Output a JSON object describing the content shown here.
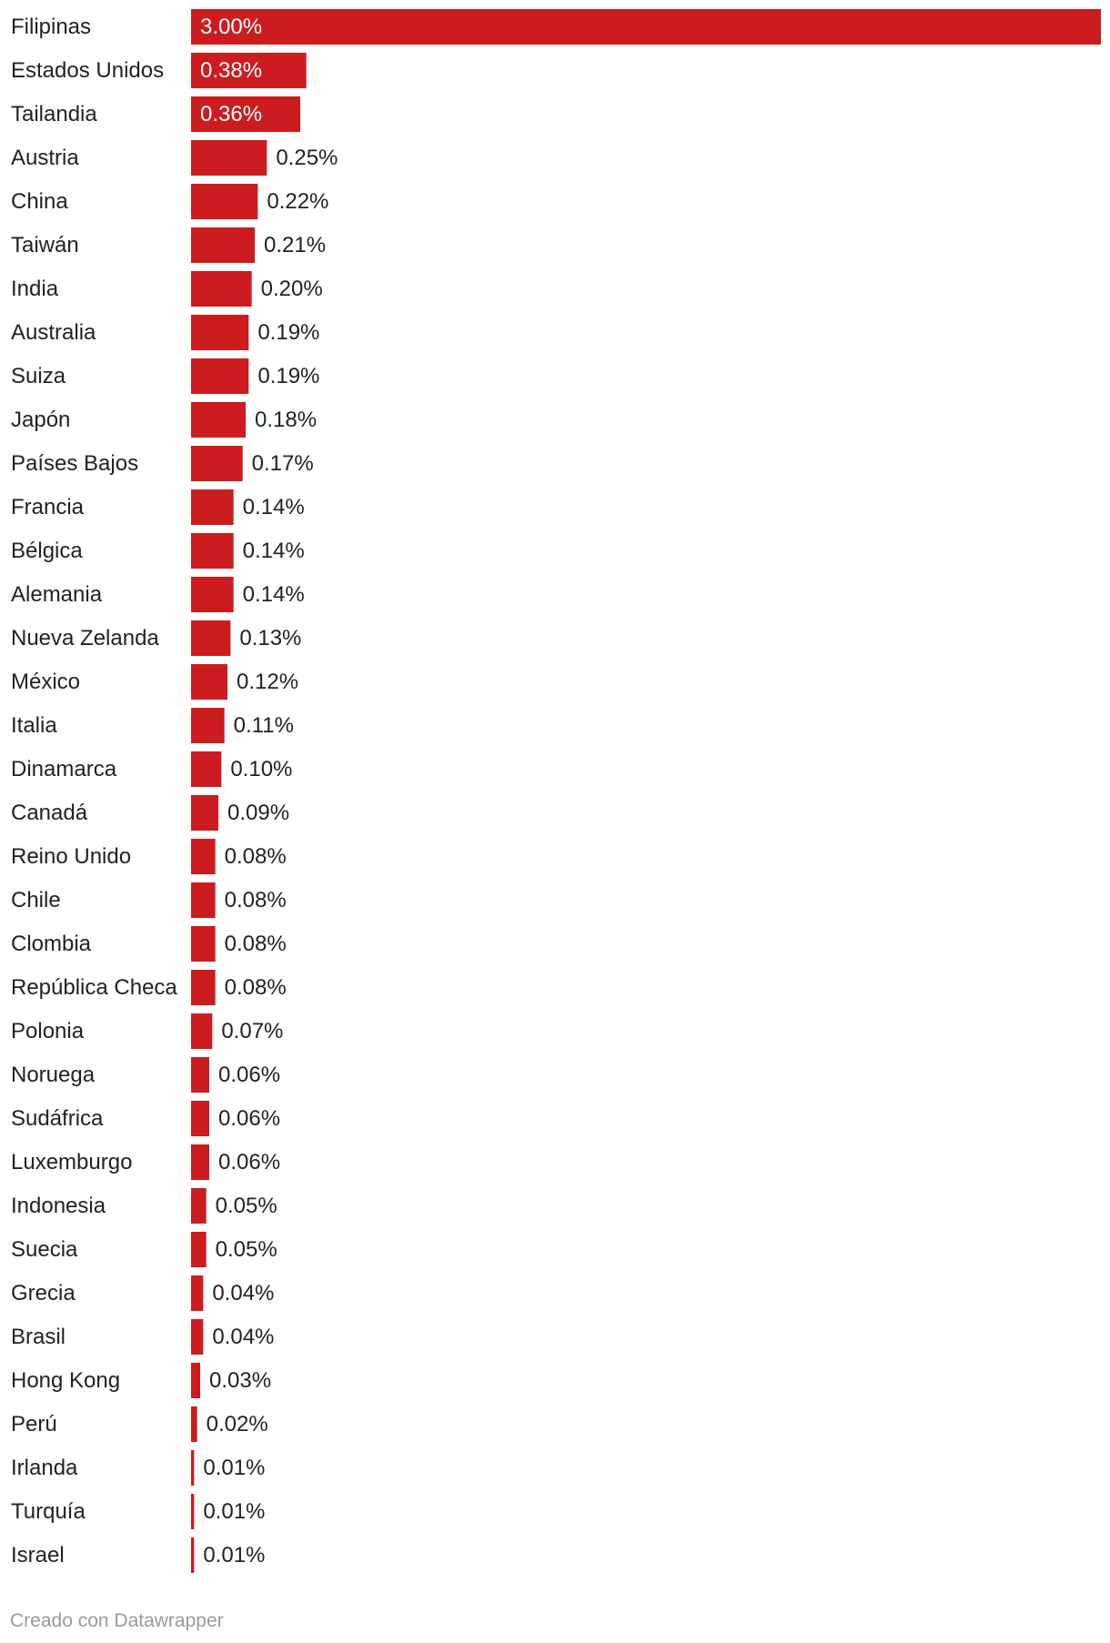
{
  "chart_data": {
    "type": "bar",
    "orientation": "horizontal",
    "title": "",
    "xlabel": "",
    "ylabel": "",
    "value_suffix": "%",
    "grid": false,
    "xlim": [
      0,
      3.0
    ],
    "bar_color": "#cc1c1f",
    "categories": [
      "Filipinas",
      "Estados Unidos",
      "Tailandia",
      "Austria",
      "China",
      "Taiwán",
      "India",
      "Australia",
      "Suiza",
      "Japón",
      "Países Bajos",
      "Francia",
      "Bélgica",
      "Alemania",
      "Nueva Zelanda",
      "México",
      "Italia",
      "Dinamarca",
      "Canadá",
      "Reino Unido",
      "Chile",
      "Clombia",
      "República Checa",
      "Polonia",
      "Noruega",
      "Sudáfrica",
      "Luxemburgo",
      "Indonesia",
      "Suecia",
      "Grecia",
      "Brasil",
      "Hong Kong",
      "Perú",
      "Irlanda",
      "Turquía",
      "Israel"
    ],
    "values": [
      3.0,
      0.38,
      0.36,
      0.25,
      0.22,
      0.21,
      0.2,
      0.19,
      0.19,
      0.18,
      0.17,
      0.14,
      0.14,
      0.14,
      0.13,
      0.12,
      0.11,
      0.1,
      0.09,
      0.08,
      0.08,
      0.08,
      0.08,
      0.07,
      0.06,
      0.06,
      0.06,
      0.05,
      0.05,
      0.04,
      0.04,
      0.03,
      0.02,
      0.01,
      0.01,
      0.01
    ],
    "labels": [
      "3.00%",
      "0.38%",
      "0.36%",
      "0.25%",
      "0.22%",
      "0.21%",
      "0.20%",
      "0.19%",
      "0.19%",
      "0.18%",
      "0.17%",
      "0.14%",
      "0.14%",
      "0.14%",
      "0.13%",
      "0.12%",
      "0.11%",
      "0.10%",
      "0.09%",
      "0.08%",
      "0.08%",
      "0.08%",
      "0.08%",
      "0.07%",
      "0.06%",
      "0.06%",
      "0.06%",
      "0.05%",
      "0.05%",
      "0.04%",
      "0.04%",
      "0.03%",
      "0.02%",
      "0.01%",
      "0.01%",
      "0.01%"
    ]
  },
  "footer": {
    "credit": "Creado con Datawrapper"
  }
}
